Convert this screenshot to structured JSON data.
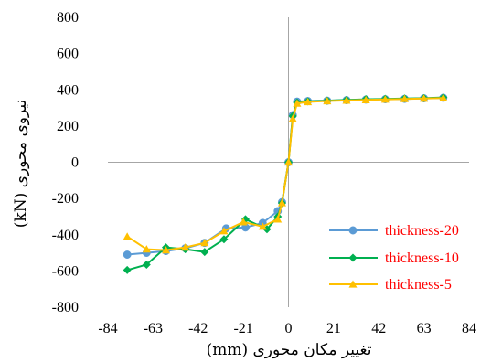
{
  "chart_data": {
    "type": "line",
    "title": "",
    "xlabel": "تغییر مکان محوری (mm)",
    "ylabel": "نیروی محوری (kN)",
    "xlim": [
      -84,
      84
    ],
    "ylim": [
      -800,
      800
    ],
    "xticks": [
      -84,
      -63,
      -42,
      -21,
      0,
      21,
      42,
      63,
      84
    ],
    "yticks": [
      800,
      600,
      400,
      200,
      0,
      -200,
      -400,
      -600,
      -800
    ],
    "x_tick_labels": [
      "-84",
      "-63",
      "-42",
      "-21",
      "0",
      "21",
      "42",
      "63",
      "84"
    ],
    "y_tick_labels": [
      "800",
      "600",
      "400",
      "200",
      "0",
      "-200",
      "-400",
      "-600",
      "-800"
    ],
    "grid": false,
    "zero_lines": true,
    "legend_position": "right",
    "series": [
      {
        "name": "thickness-20",
        "color": "#5B9BD5",
        "text_color": "#FF0000",
        "marker": "circle",
        "x": [
          -75,
          -66,
          -57,
          -48,
          -39,
          -29,
          -20,
          -12,
          -5,
          -3,
          0,
          2,
          4,
          9,
          18,
          27,
          36,
          45,
          54,
          63,
          72
        ],
        "y": [
          -510,
          -500,
          -490,
          -475,
          -445,
          -365,
          -360,
          -335,
          -270,
          -220,
          0,
          260,
          335,
          338,
          340,
          343,
          346,
          348,
          350,
          353,
          356
        ]
      },
      {
        "name": "thickness-10",
        "color": "#00B050",
        "text_color": "#FF0000",
        "marker": "diamond",
        "x": [
          -75,
          -66,
          -57,
          -48,
          -39,
          -30,
          -20,
          -10,
          -5,
          -3,
          0,
          2,
          4,
          9,
          18,
          27,
          36,
          45,
          54,
          63,
          72
        ],
        "y": [
          -595,
          -565,
          -470,
          -480,
          -495,
          -425,
          -315,
          -370,
          -300,
          -225,
          0,
          255,
          330,
          336,
          340,
          344,
          348,
          350,
          352,
          354,
          358
        ]
      },
      {
        "name": "thickness-5",
        "color": "#FFC000",
        "text_color": "#FF0000",
        "marker": "triangle",
        "x": [
          -75,
          -66,
          -57,
          -48,
          -39,
          -30,
          -21,
          -12,
          -5,
          -3,
          0,
          2,
          4,
          9,
          18,
          27,
          36,
          45,
          54,
          63,
          72
        ],
        "y": [
          -410,
          -480,
          -485,
          -470,
          -445,
          -380,
          -330,
          -355,
          -315,
          -225,
          0,
          240,
          325,
          333,
          338,
          341,
          344,
          347,
          350,
          352,
          355
        ]
      }
    ]
  }
}
